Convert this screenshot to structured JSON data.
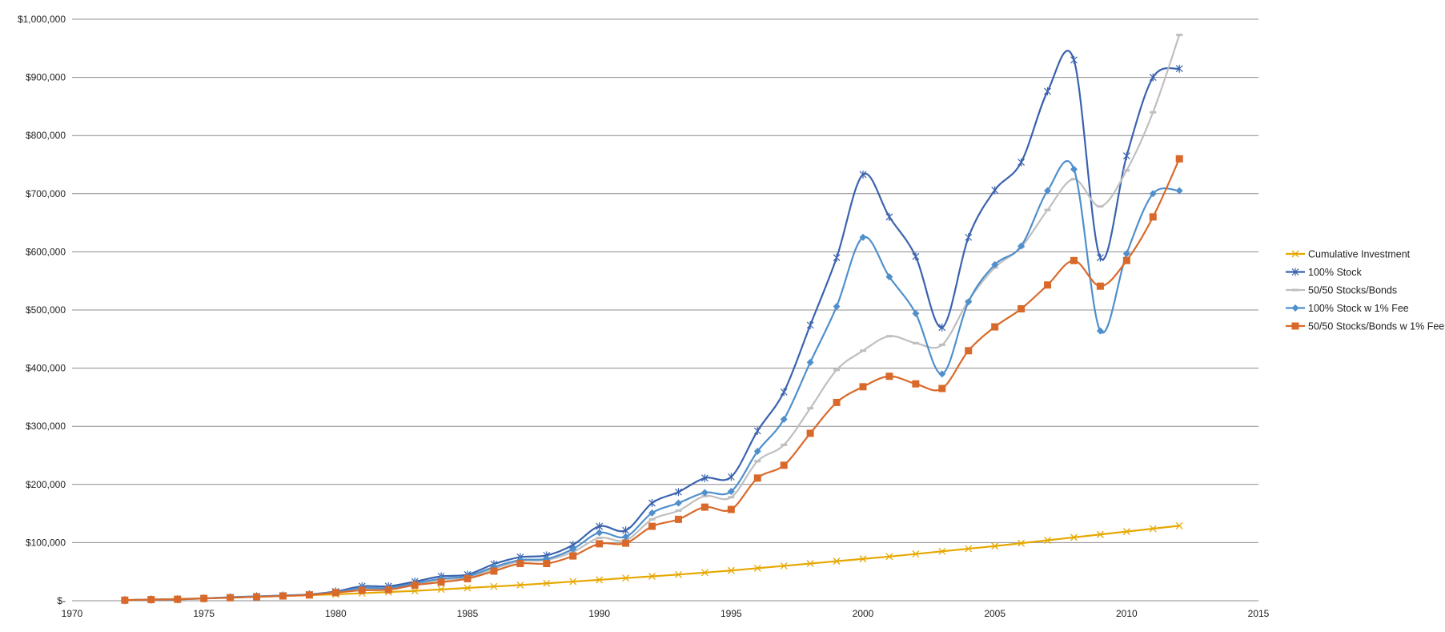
{
  "chart_data": {
    "type": "line",
    "title": "",
    "xlabel": "",
    "ylabel": "",
    "xlim": [
      1970,
      2015
    ],
    "ylim": [
      0,
      1000000
    ],
    "x_ticks": [
      "1970",
      "1975",
      "1980",
      "1985",
      "1990",
      "1995",
      "2000",
      "2005",
      "2010",
      "2015"
    ],
    "y_ticks": [
      "$-",
      "$100,000",
      "$200,000",
      "$300,000",
      "$400,000",
      "$500,000",
      "$600,000",
      "$700,000",
      "$800,000",
      "$900,000",
      "$1,000,000"
    ],
    "grid": "horizontal",
    "legend_position": "right",
    "x": [
      1972,
      1973,
      1974,
      1975,
      1976,
      1977,
      1978,
      1979,
      1980,
      1981,
      1982,
      1983,
      1984,
      1985,
      1986,
      1987,
      1988,
      1989,
      1990,
      1991,
      1992,
      1993,
      1994,
      1995,
      1996,
      1997,
      1998,
      1999,
      2000,
      2001,
      2002,
      2003,
      2004,
      2005,
      2006,
      2007,
      2008,
      2009,
      2010,
      2011,
      2012
    ],
    "series": [
      {
        "name": "Cumulative Investment",
        "color": "#E6A800",
        "marker": "x",
        "values": [
          1200,
          2200,
          3200,
          4300,
          5500,
          6800,
          8200,
          9600,
          11000,
          13000,
          15000,
          17000,
          19500,
          22000,
          24500,
          27000,
          30000,
          33000,
          36000,
          39000,
          42000,
          45000,
          48500,
          52000,
          56000,
          60000,
          64000,
          68000,
          72000,
          76000,
          80500,
          85000,
          89500,
          94000,
          99000,
          104000,
          109000,
          114000,
          119000,
          124000,
          129000
        ]
      },
      {
        "name": "100% Stock",
        "color": "#3A62AE",
        "marker": "star",
        "values": [
          1000,
          2000,
          2500,
          4000,
          6000,
          7500,
          9000,
          11000,
          16000,
          25000,
          25000,
          33000,
          42000,
          45000,
          63000,
          75000,
          78000,
          96000,
          128000,
          121000,
          168000,
          187000,
          211000,
          213000,
          292000,
          359000,
          474000,
          590000,
          733000,
          660000,
          592000,
          470000,
          625000,
          706000,
          754000,
          876000,
          930000,
          590000,
          765000,
          900000,
          915000
        ]
      },
      {
        "name": "50/50 Stocks/Bonds",
        "color": "#BFBFBF",
        "marker": "dash",
        "values": [
          1000,
          2000,
          2500,
          4000,
          5500,
          7000,
          8500,
          10500,
          14500,
          20000,
          21000,
          29000,
          36000,
          40000,
          55000,
          68000,
          70000,
          84000,
          108000,
          104000,
          140000,
          155000,
          180000,
          178000,
          240000,
          268000,
          331000,
          397000,
          430000,
          455000,
          443000,
          440000,
          516000,
          573000,
          608000,
          672000,
          725000,
          678000,
          740000,
          840000,
          973000
        ]
      },
      {
        "name": "100% Stock w 1% Fee",
        "color": "#4F8FCC",
        "marker": "diamond",
        "values": [
          1000,
          2000,
          2500,
          4000,
          5800,
          7200,
          8800,
          10800,
          15000,
          22000,
          22000,
          30000,
          38000,
          42000,
          58000,
          70000,
          72000,
          89000,
          117000,
          110000,
          151000,
          168000,
          186000,
          188000,
          257000,
          312000,
          410000,
          506000,
          625000,
          557000,
          494000,
          390000,
          514000,
          578000,
          610000,
          705000,
          742000,
          464000,
          597000,
          700000,
          705000
        ]
      },
      {
        "name": "50/50 Stocks/Bonds w 1% Fee",
        "color": "#D9692A",
        "marker": "square",
        "values": [
          1000,
          2000,
          2500,
          4000,
          5200,
          6800,
          8200,
          10000,
          14000,
          18000,
          19000,
          27000,
          32000,
          38000,
          51000,
          64000,
          64000,
          77000,
          98000,
          99000,
          128000,
          140000,
          161000,
          157000,
          211000,
          233000,
          288000,
          341000,
          368000,
          386000,
          373000,
          365000,
          430000,
          471000,
          502000,
          543000,
          585000,
          541000,
          585000,
          660000,
          760000
        ]
      }
    ]
  }
}
